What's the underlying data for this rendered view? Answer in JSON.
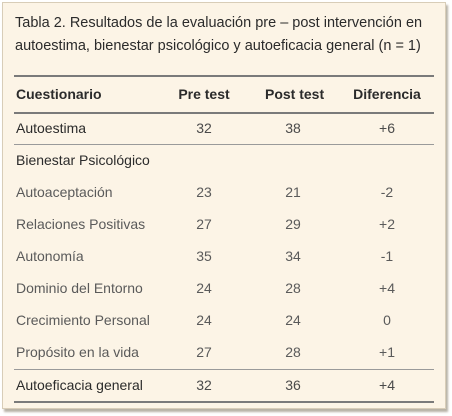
{
  "table": {
    "title": "Tabla 2. Resultados de la evaluación pre – post intervención en autoestima, bienestar psicológico y autoeficacia general (n = 1)",
    "columns": [
      "Cuestionario",
      "Pre test",
      "Post test",
      "Diferencia"
    ],
    "rows": [
      {
        "label": "Autoestima",
        "pre": "32",
        "post": "38",
        "diff": "+6"
      },
      {
        "label": "Bienestar Psicológico",
        "pre": "",
        "post": "",
        "diff": ""
      },
      {
        "label": "Autoaceptación",
        "pre": "23",
        "post": "21",
        "diff": "-2"
      },
      {
        "label": "Relaciones Positivas",
        "pre": "27",
        "post": "29",
        "diff": "+2"
      },
      {
        "label": "Autonomía",
        "pre": "35",
        "post": "34",
        "diff": "-1"
      },
      {
        "label": "Dominio del Entorno",
        "pre": "24",
        "post": "28",
        "diff": "+4"
      },
      {
        "label": "Crecimiento Personal",
        "pre": "24",
        "post": "24",
        "diff": "0"
      },
      {
        "label": "Propósito en la vida",
        "pre": "27",
        "post": "28",
        "diff": "+1"
      },
      {
        "label": "Autoeficacia general",
        "pre": "32",
        "post": "36",
        "diff": "+4"
      }
    ]
  }
}
